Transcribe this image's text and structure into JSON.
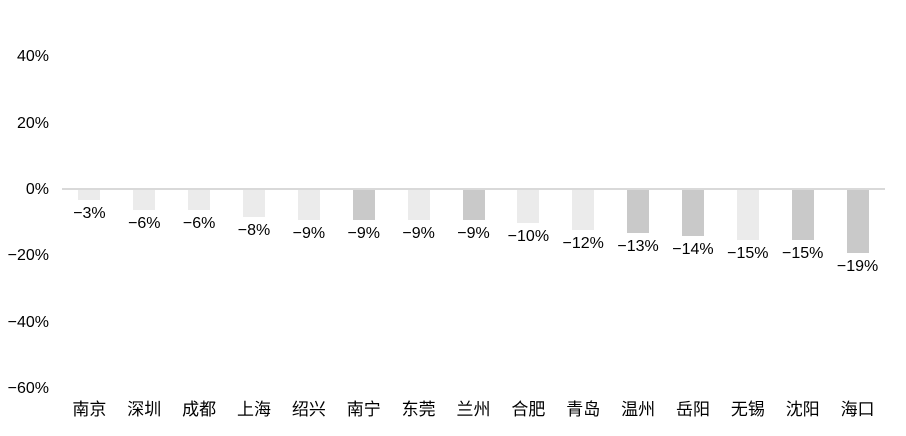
{
  "chart_data": {
    "type": "bar",
    "title": "",
    "xlabel": "",
    "ylabel": "",
    "categories": [
      "南京",
      "深圳",
      "成都",
      "上海",
      "绍兴",
      "南宁",
      "东莞",
      "兰州",
      "合肥",
      "青岛",
      "温州",
      "岳阳",
      "无锡",
      "沈阳",
      "海口"
    ],
    "values": [
      -3,
      -6,
      -6,
      -8,
      -9,
      -9,
      -9,
      -9,
      -10,
      -12,
      -13,
      -14,
      -15,
      -15,
      -19
    ],
    "value_labels": [
      "−3%",
      "−6%",
      "−6%",
      "−8%",
      "−9%",
      "−9%",
      "−9%",
      "−9%",
      "−10%",
      "−12%",
      "−13%",
      "−14%",
      "−15%",
      "−15%",
      "−19%"
    ],
    "bar_shades": [
      "light",
      "light",
      "light",
      "light",
      "light",
      "dark",
      "light",
      "dark",
      "light",
      "light",
      "dark",
      "dark",
      "light",
      "dark",
      "dark"
    ],
    "yticks": [
      {
        "label": "40%",
        "value": 40
      },
      {
        "label": "20%",
        "value": 20
      },
      {
        "label": "0%",
        "value": 0
      },
      {
        "label": "−20%",
        "value": -20
      },
      {
        "label": "−40%",
        "value": -40
      },
      {
        "label": "−60%",
        "value": -60
      }
    ],
    "ylim": [
      -60,
      40
    ],
    "grid": false,
    "legend": false,
    "colors": {
      "light": "#ebebeb",
      "dark": "#c9c9c9",
      "axis_line": "#d9d9d9",
      "text": "#000000"
    }
  }
}
